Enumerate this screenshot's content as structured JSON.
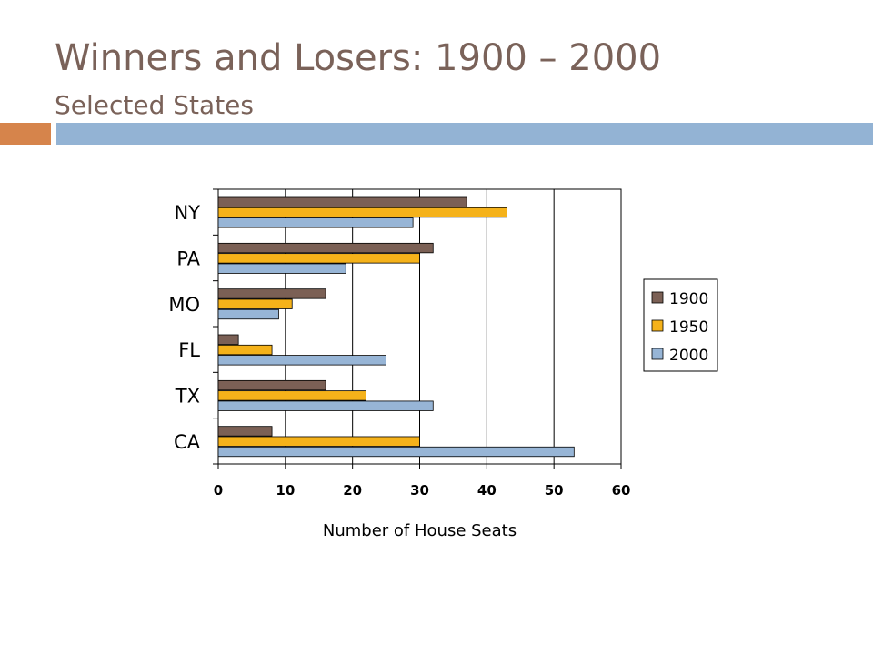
{
  "slide": {
    "title": "Winners and Losers: 1900 – 2000",
    "subtitle": "Selected States",
    "accent_colors": {
      "orange": "#d6844b",
      "blue": "#93b3d4",
      "title": "#7a6259"
    }
  },
  "chart_data": {
    "type": "bar",
    "orientation": "horizontal",
    "categories": [
      "NY",
      "PA",
      "MO",
      "FL",
      "TX",
      "CA"
    ],
    "series": [
      {
        "name": "1900",
        "color": "#7b6055",
        "values": [
          37,
          32,
          16,
          3,
          16,
          8
        ]
      },
      {
        "name": "1950",
        "color": "#f5b21a",
        "values": [
          43,
          30,
          11,
          8,
          22,
          30
        ]
      },
      {
        "name": "2000",
        "color": "#97b5d6",
        "values": [
          29,
          19,
          9,
          25,
          32,
          53
        ]
      }
    ],
    "xlabel": "Number of House Seats",
    "ylabel": "",
    "xlim": [
      0,
      60
    ],
    "xticks": [
      0,
      10,
      20,
      30,
      40,
      50,
      60
    ],
    "grid": "vertical gridlines",
    "legend": "right"
  }
}
